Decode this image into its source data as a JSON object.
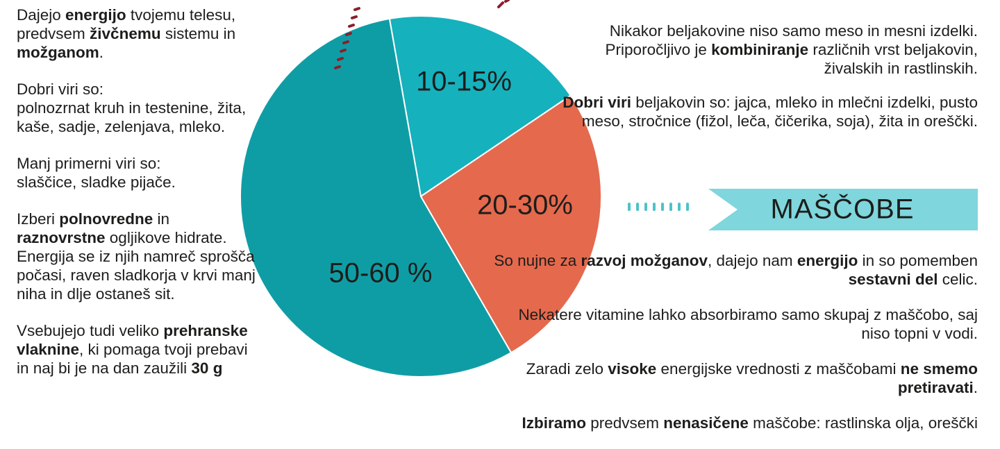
{
  "chart_data": {
    "type": "pie",
    "slices": [
      {
        "label": "10-15%",
        "value": 12.5,
        "color": "#15b1bd"
      },
      {
        "label": "20-30%",
        "value": 25,
        "color": "#e5694d"
      },
      {
        "label": "50-60 %",
        "value": 55,
        "color": "#0f9da5"
      }
    ]
  },
  "colors": {
    "teal_light": "#15b1bd",
    "coral": "#e5694d",
    "teal_dark": "#0f9da5",
    "banner": "#7fd6dc",
    "dots_teal": "#4cc3c8",
    "dots_red": "#8b1f2c"
  },
  "left": {
    "p1": {
      "a": "Dajejo ",
      "b": "energijo",
      "c": " tvojemu telesu, predvsem ",
      "d": "živčnemu",
      "e": " sistemu in ",
      "f": "možganom",
      "g": "."
    },
    "p2": {
      "line1": "Dobri viri so:",
      "line2": "polnozrnat kruh in testenine, žita, kaše, sadje, zelenjava, mleko."
    },
    "p3": {
      "line1": "Manj primerni viri so:",
      "line2": "slaščice, sladke pijače."
    },
    "p4": {
      "a": "Izberi ",
      "b": "polnovredne",
      "c": " in ",
      "d": "raznovrstne",
      "e": " ogljikove hidrate. Energija se iz njih namreč sprošča počasi, raven sladkorja v krvi manj niha in dlje ostaneš sit."
    },
    "p5": {
      "a": "Vsebujejo tudi veliko ",
      "b": "prehranske vlaknine",
      "c": ", ki pomaga tvoji prebavi in naj bi je na dan zaužili ",
      "d": "30 g"
    }
  },
  "right_top": {
    "p1": {
      "a": "Nikakor beljakovine niso samo meso in mesni izdelki. Priporočljivo je ",
      "b": "kombiniranje",
      "c": " različnih vrst beljakovin, živalskih in rastlinskih."
    },
    "p2": {
      "a": "Dobri viri",
      "b": " beljakovin so: jajca, mleko in mlečni izdelki, pusto meso, stročnice (fižol, leča, čičerika, soja), žita in oreščki."
    }
  },
  "banner": {
    "label": "MAŠČOBE"
  },
  "right_bottom": {
    "p1": {
      "a": "So nujne za ",
      "b": "razvoj možganov",
      "c": ", dajejo nam ",
      "d": "energijo",
      "e": " in so pomemben ",
      "f": "sestavni del",
      "g": " celic."
    },
    "p2": {
      "a": "Nekatere vitamine lahko absorbiramo samo skupaj z maščobo, saj niso topni v vodi."
    },
    "p3": {
      "a": "Zaradi zelo ",
      "b": "visoke",
      "c": " energijske vrednosti z maščobami ",
      "d": "ne smemo pretiravati",
      "e": "."
    },
    "p4": {
      "a": "Izbiramo",
      "b": " predvsem ",
      "c": "nenasičene",
      "d": " maščobe: rastlinska olja, oreščki"
    }
  }
}
